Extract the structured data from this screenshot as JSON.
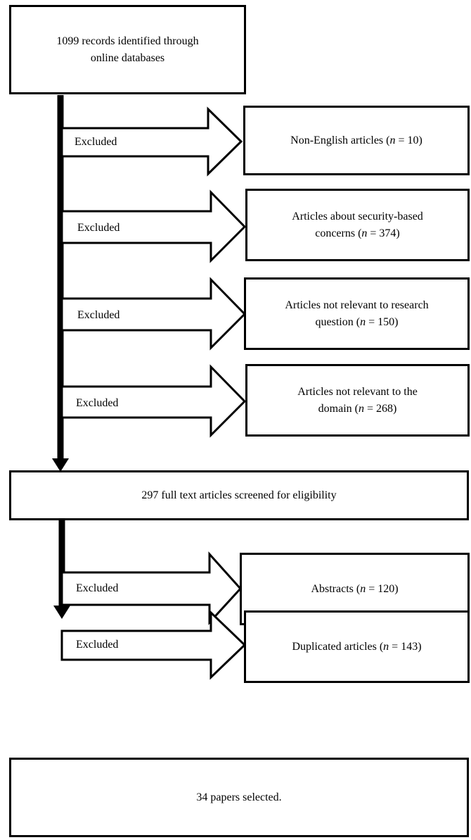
{
  "top_box": {
    "line1": "1099 records identified through",
    "line2": "online databases"
  },
  "excluded_label": "Excluded",
  "first_exclusions": [
    {
      "pre": "Non-English articles (",
      "n": "n",
      "post": " = 10)"
    },
    {
      "line1": "Articles about security-based",
      "pre": "concerns (",
      "n": "n",
      "post": " = 374)"
    },
    {
      "line1": "Articles not relevant to research",
      "pre": "question (",
      "n": "n",
      "post": " = 150)"
    },
    {
      "line1": "Articles not relevant to the",
      "pre": "domain (",
      "n": "n",
      "post": " = 268)"
    }
  ],
  "middle_box": {
    "text": "297 full text articles screened for eligibility"
  },
  "second_exclusions": [
    {
      "pre": "Abstracts (",
      "n": "n",
      "post": " = 120)"
    },
    {
      "pre": "Duplicated articles (",
      "n": "n",
      "post": " = 143)"
    }
  ],
  "bottom_box": {
    "text": "34 papers selected."
  }
}
